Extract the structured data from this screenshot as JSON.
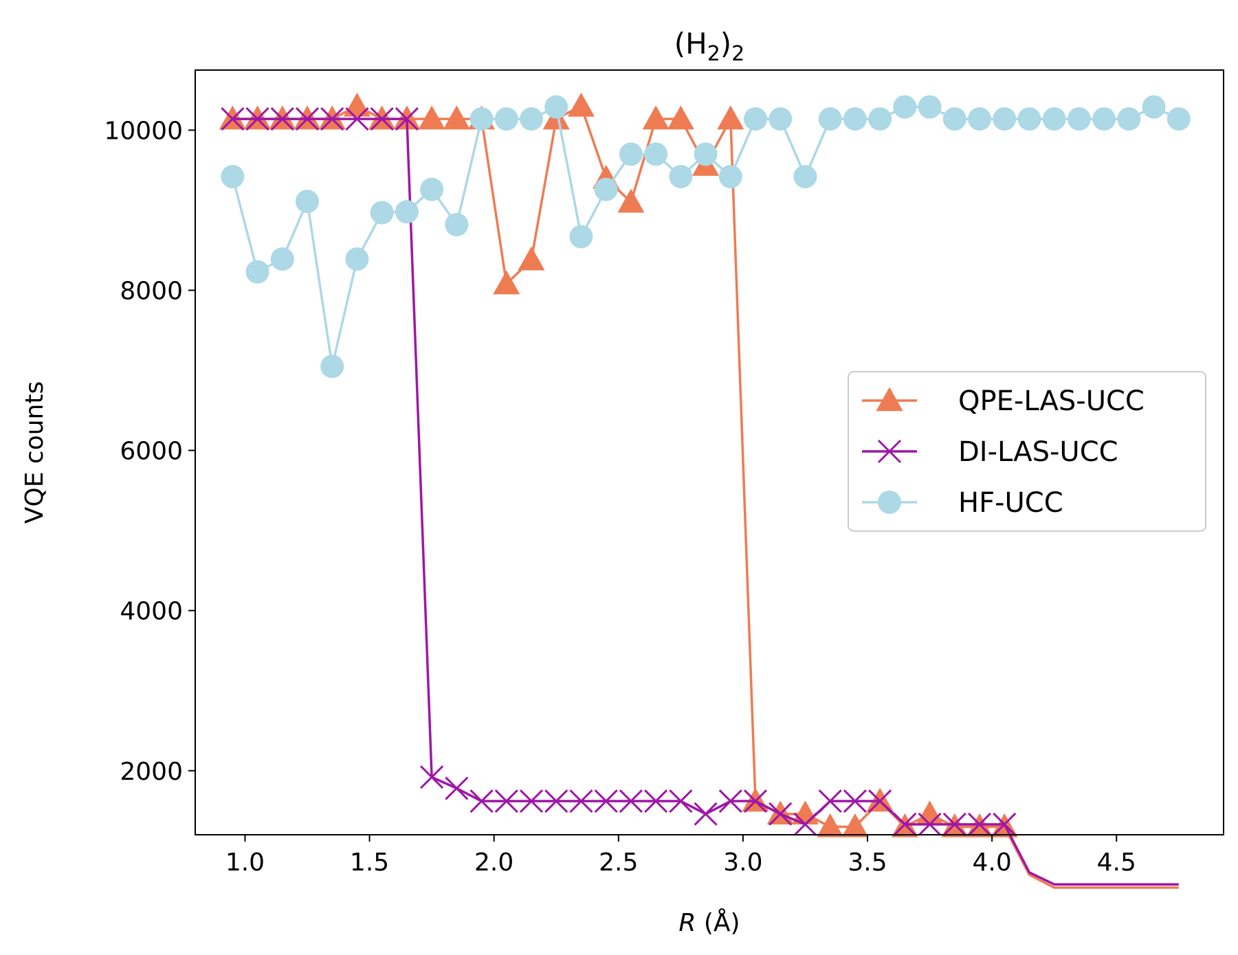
{
  "chart_data": {
    "type": "line",
    "title": {
      "base": "(H",
      "sub1": "2",
      "mid": ")",
      "sub2": "2"
    },
    "xlabel": {
      "var": "R",
      "unit": " (Å)"
    },
    "ylabel": "VQE counts",
    "xlim": [
      0.8,
      4.93
    ],
    "ylim": [
      1200,
      10750
    ],
    "xticks": [
      1.0,
      1.5,
      2.0,
      2.5,
      3.0,
      3.5,
      4.0,
      4.5
    ],
    "xtick_labels": [
      "1.0",
      "1.5",
      "2.0",
      "2.5",
      "3.0",
      "3.5",
      "4.0",
      "4.5"
    ],
    "yticks": [
      2000,
      4000,
      6000,
      8000,
      10000
    ],
    "ytick_labels": [
      "2000",
      "4000",
      "6000",
      "8000",
      "10000"
    ],
    "grid": false,
    "legend_position": "center-right",
    "x": [
      0.95,
      1.05,
      1.15,
      1.25,
      1.35,
      1.45,
      1.55,
      1.65,
      1.75,
      1.85,
      1.95,
      2.05,
      2.15,
      2.25,
      2.35,
      2.45,
      2.55,
      2.65,
      2.75,
      2.85,
      2.95,
      3.05,
      3.15,
      3.25,
      3.35,
      3.45,
      3.55,
      3.65,
      3.75,
      3.85,
      3.95,
      4.05,
      4.15,
      4.25,
      4.35,
      4.45,
      4.55,
      4.65,
      4.75
    ],
    "series": [
      {
        "name": "QPE-LAS-UCC",
        "color": "#ef7b53",
        "marker": "triangle",
        "values": [
          10140,
          10140,
          10140,
          10140,
          10140,
          10300,
          10140,
          10140,
          10140,
          10140,
          10140,
          8080,
          8380,
          10140,
          10300,
          9400,
          9100,
          10140,
          10140,
          9560,
          10140,
          1620,
          1460,
          1460,
          1300,
          1300,
          1620,
          1300,
          1460,
          1300,
          1300,
          1300,
          700,
          540,
          540,
          540,
          540,
          540,
          540
        ]
      },
      {
        "name": "DI-LAS-UCC",
        "color": "#9e17a6",
        "marker": "x",
        "values": [
          10140,
          10140,
          10140,
          10140,
          10140,
          10140,
          10140,
          10140,
          1920,
          1780,
          1620,
          1620,
          1620,
          1620,
          1620,
          1620,
          1620,
          1620,
          1620,
          1460,
          1620,
          1620,
          1460,
          1330,
          1620,
          1620,
          1620,
          1330,
          1330,
          1330,
          1330,
          1330,
          730,
          580,
          580,
          580,
          580,
          580,
          580
        ]
      },
      {
        "name": "HF-UCC",
        "color": "#add8e6",
        "marker": "circle",
        "values": [
          9420,
          8230,
          8390,
          9110,
          7050,
          8390,
          8970,
          8980,
          9260,
          8820,
          10140,
          10140,
          10140,
          10290,
          8670,
          9260,
          9700,
          9700,
          9420,
          9700,
          9420,
          10140,
          10140,
          9420,
          10140,
          10140,
          10140,
          10290,
          10290,
          10140,
          10140,
          10140,
          10140,
          10140,
          10140,
          10140,
          10140,
          10290,
          10140
        ]
      }
    ]
  }
}
